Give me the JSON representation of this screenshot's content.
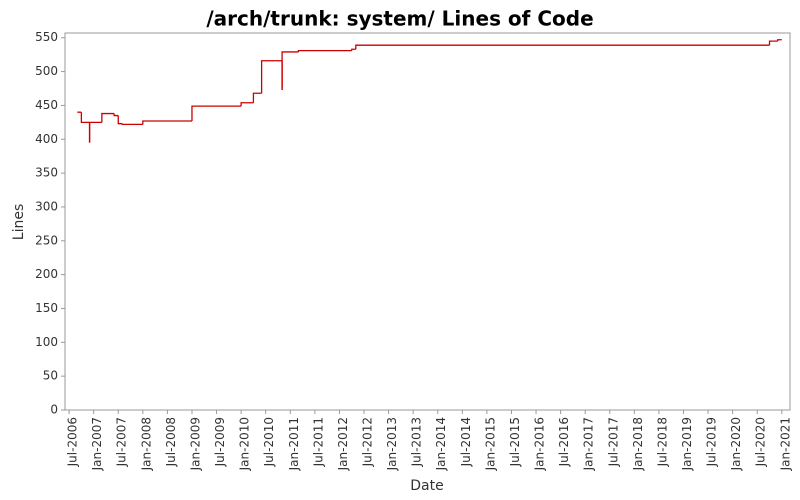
{
  "chart_data": {
    "type": "line",
    "step": true,
    "title": "/arch/trunk: system/ Lines of Code",
    "xlabel": "Date",
    "ylabel": "Lines",
    "color": "#cc0000",
    "grid": false,
    "x": [
      "2006-09",
      "2006-10",
      "2006-12",
      "2006-12",
      "2007-03",
      "2007-06",
      "2007-07",
      "2007-08",
      "2008-01",
      "2009-01",
      "2010-01",
      "2010-04",
      "2010-06",
      "2010-11",
      "2010-11",
      "2011-03",
      "2012-04",
      "2012-05",
      "2020-10",
      "2020-12",
      "2021-01"
    ],
    "values": [
      440,
      425,
      395,
      425,
      438,
      435,
      423,
      422,
      427,
      449,
      454,
      468,
      516,
      473,
      529,
      531,
      533,
      539,
      545,
      547,
      547
    ],
    "xlim": [
      "2006-06",
      "2021-03"
    ],
    "xticks": [
      {
        "value": "2006-07",
        "label": "Jul-2006"
      },
      {
        "value": "2007-01",
        "label": "Jan-2007"
      },
      {
        "value": "2007-07",
        "label": "Jul-2007"
      },
      {
        "value": "2008-01",
        "label": "Jan-2008"
      },
      {
        "value": "2008-07",
        "label": "Jul-2008"
      },
      {
        "value": "2009-01",
        "label": "Jan-2009"
      },
      {
        "value": "2009-07",
        "label": "Jul-2009"
      },
      {
        "value": "2010-01",
        "label": "Jan-2010"
      },
      {
        "value": "2010-07",
        "label": "Jul-2010"
      },
      {
        "value": "2011-01",
        "label": "Jan-2011"
      },
      {
        "value": "2011-07",
        "label": "Jul-2011"
      },
      {
        "value": "2012-01",
        "label": "Jan-2012"
      },
      {
        "value": "2012-07",
        "label": "Jul-2012"
      },
      {
        "value": "2013-01",
        "label": "Jan-2013"
      },
      {
        "value": "2013-07",
        "label": "Jul-2013"
      },
      {
        "value": "2014-01",
        "label": "Jan-2014"
      },
      {
        "value": "2014-07",
        "label": "Jul-2014"
      },
      {
        "value": "2015-01",
        "label": "Jan-2015"
      },
      {
        "value": "2015-07",
        "label": "Jul-2015"
      },
      {
        "value": "2016-01",
        "label": "Jan-2016"
      },
      {
        "value": "2016-07",
        "label": "Jul-2016"
      },
      {
        "value": "2017-01",
        "label": "Jan-2017"
      },
      {
        "value": "2017-07",
        "label": "Jul-2017"
      },
      {
        "value": "2018-01",
        "label": "Jan-2018"
      },
      {
        "value": "2018-07",
        "label": "Jul-2018"
      },
      {
        "value": "2019-01",
        "label": "Jan-2019"
      },
      {
        "value": "2019-07",
        "label": "Jul-2019"
      },
      {
        "value": "2020-01",
        "label": "Jan-2020"
      },
      {
        "value": "2020-07",
        "label": "Jul-2020"
      },
      {
        "value": "2021-01",
        "label": "Jan-2021"
      }
    ],
    "ylim": [
      0,
      557
    ],
    "yticks": [
      0,
      50,
      100,
      150,
      200,
      250,
      300,
      350,
      400,
      450,
      500,
      550
    ]
  }
}
